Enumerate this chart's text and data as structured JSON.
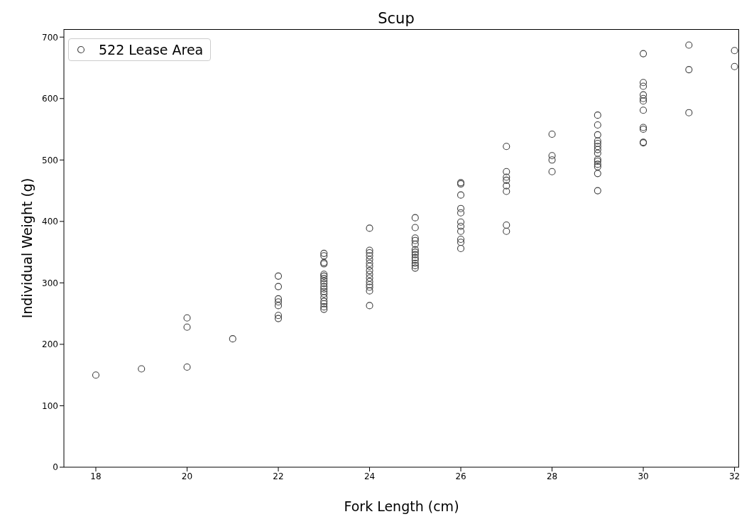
{
  "chart_data": {
    "type": "scatter",
    "title": "Scup",
    "xlabel": "Fork Length (cm)",
    "ylabel": "Individual Weight (g)",
    "xlim": [
      17.3,
      32.1
    ],
    "xticks": [
      18,
      20,
      22,
      24,
      26,
      28,
      30,
      32
    ],
    "ylim": [
      0,
      713
    ],
    "yticks": [
      0,
      100,
      200,
      300,
      400,
      500,
      600,
      700
    ],
    "grid": false,
    "legend": "top left",
    "marker": "circle",
    "series": [
      {
        "name": "522 Lease Area",
        "color": "#404040",
        "x": [
          18,
          19,
          20,
          20,
          20,
          21,
          22,
          22,
          22,
          22,
          22,
          22,
          22,
          23,
          23,
          23,
          23,
          23,
          23,
          23,
          23,
          23,
          23,
          23,
          23,
          23,
          23,
          23,
          23,
          23,
          23,
          24,
          24,
          24,
          24,
          24,
          24,
          24,
          24,
          24,
          24,
          24,
          24,
          24,
          24,
          24,
          25,
          25,
          25,
          25,
          25,
          25,
          25,
          25,
          25,
          25,
          25,
          25,
          25,
          26,
          26,
          26,
          26,
          26,
          26,
          26,
          26,
          26,
          26,
          26,
          27,
          27,
          27,
          27,
          27,
          27,
          27,
          27,
          28,
          28,
          28,
          28,
          29,
          29,
          29,
          29,
          29,
          29,
          29,
          29,
          29,
          29,
          29,
          29,
          29,
          29,
          30,
          30,
          30,
          30,
          30,
          30,
          30,
          30,
          30,
          30,
          30,
          31,
          31,
          31,
          32,
          32
        ],
        "values": [
          150,
          160,
          243,
          228,
          163,
          209,
          311,
          294,
          274,
          269,
          263,
          247,
          242,
          348,
          344,
          333,
          331,
          314,
          311,
          307,
          303,
          299,
          294,
          290,
          286,
          282,
          276,
          270,
          266,
          261,
          257,
          389,
          353,
          349,
          344,
          338,
          332,
          327,
          320,
          314,
          308,
          302,
          297,
          293,
          287,
          263,
          406,
          390,
          373,
          369,
          363,
          354,
          350,
          346,
          341,
          337,
          332,
          328,
          324,
          463,
          461,
          443,
          421,
          414,
          399,
          392,
          384,
          371,
          366,
          356,
          522,
          481,
          472,
          467,
          458,
          449,
          394,
          384,
          542,
          507,
          500,
          481,
          573,
          557,
          541,
          531,
          527,
          522,
          517,
          511,
          501,
          498,
          493,
          489,
          478,
          450,
          673,
          626,
          620,
          606,
          600,
          596,
          581,
          553,
          550,
          529,
          528,
          687,
          647,
          577,
          678,
          652
        ]
      }
    ]
  }
}
